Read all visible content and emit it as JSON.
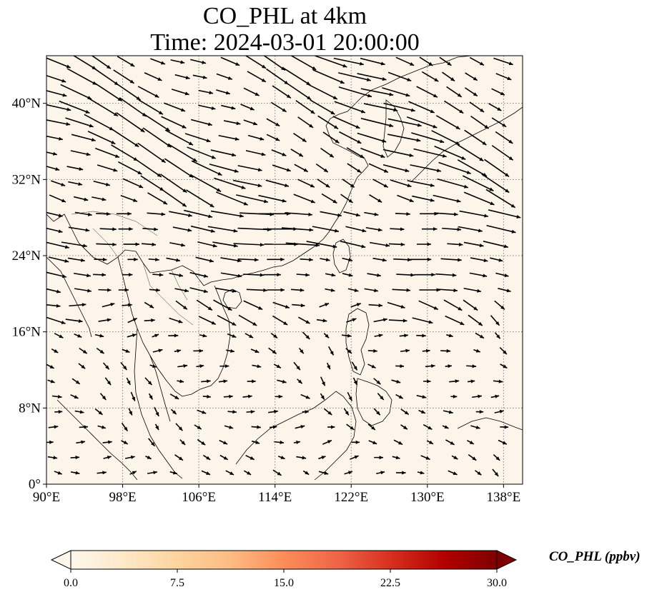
{
  "title": {
    "line1": "CO_PHL at 4km",
    "line2": "Time: 2024-03-01 20:00:00"
  },
  "map": {
    "projection": "PlateCarree",
    "lon_range": [
      90,
      140
    ],
    "lat_range": [
      0,
      45
    ],
    "x_ticks": [
      {
        "value": 90,
        "label": "90°E"
      },
      {
        "value": 98,
        "label": "98°E"
      },
      {
        "value": 106,
        "label": "106°E"
      },
      {
        "value": 114,
        "label": "114°E"
      },
      {
        "value": 122,
        "label": "122°E"
      },
      {
        "value": 130,
        "label": "130°E"
      },
      {
        "value": 138,
        "label": "138°E"
      }
    ],
    "y_ticks": [
      {
        "value": 0,
        "label": "0°"
      },
      {
        "value": 8,
        "label": "8°N"
      },
      {
        "value": 16,
        "label": "16°N"
      },
      {
        "value": 24,
        "label": "24°N"
      },
      {
        "value": 32,
        "label": "32°N"
      },
      {
        "value": 40,
        "label": "40°N"
      }
    ],
    "gridlines": true,
    "field_background": "#fdf5ea",
    "coastline_color": "#000000",
    "vector_color": "#000000"
  },
  "colorbar": {
    "label": "CO_PHL (ppbv)",
    "min": 0.0,
    "max": 30.0,
    "extend": "both",
    "colormap": "OrRd",
    "colors": [
      "#fff7ec",
      "#fee8c8",
      "#fdd49e",
      "#fdbb84",
      "#fc8d59",
      "#ef6548",
      "#d7301f",
      "#b30000",
      "#7f0000"
    ],
    "ticks": [
      {
        "value": 0.0,
        "label": "0.0"
      },
      {
        "value": 7.5,
        "label": "7.5"
      },
      {
        "value": 15.0,
        "label": "15.0"
      },
      {
        "value": 22.5,
        "label": "22.5"
      },
      {
        "value": 30.0,
        "label": "30.0"
      }
    ]
  }
}
